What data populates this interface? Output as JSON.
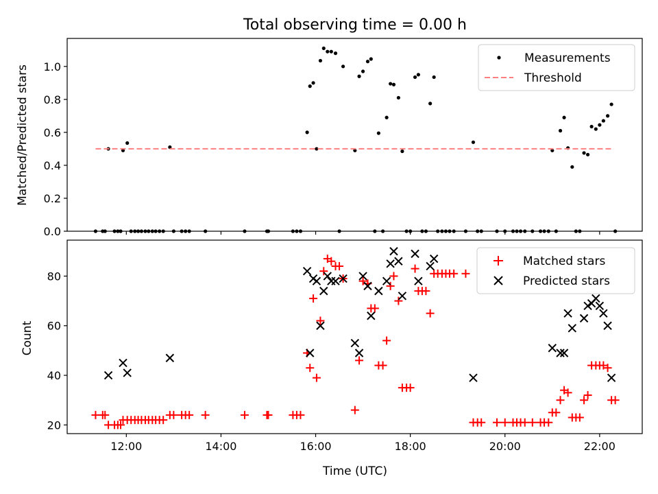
{
  "figure": {
    "title": "Total observing time = 0.00 h",
    "xlabel": "Time (UTC)",
    "xtick_labels": [
      "12:00",
      "14:00",
      "16:00",
      "18:00",
      "20:00",
      "22:00"
    ]
  },
  "colors": {
    "measurement": "#000000",
    "threshold": "#ff7f7f",
    "matched": "#ff0000",
    "predicted": "#000000"
  },
  "chart_data": [
    {
      "type": "scatter",
      "title": "Total observing time = 0.00 h",
      "xlabel": "",
      "ylabel": "Matched/Predicted stars",
      "x_unit": "hours UTC",
      "xlim": [
        10.75,
        22.9
      ],
      "ylim": [
        0,
        1.17
      ],
      "xticks": [
        12,
        14,
        16,
        18,
        20,
        22
      ],
      "yticks": [
        0.0,
        0.2,
        0.4,
        0.6,
        0.8,
        1.0
      ],
      "ytick_labels": [
        "0.0",
        "0.2",
        "0.4",
        "0.6",
        "0.8",
        "1.0"
      ],
      "grid": false,
      "legend": "top-right",
      "series": [
        {
          "name": "Measurements",
          "marker": "dot",
          "points": [
            [
              11.35,
              0
            ],
            [
              11.5,
              0
            ],
            [
              11.55,
              0
            ],
            [
              11.62,
              0.5
            ],
            [
              11.75,
              0
            ],
            [
              11.82,
              0
            ],
            [
              11.88,
              0
            ],
            [
              11.93,
              0.49
            ],
            [
              12.02,
              0.535
            ],
            [
              12.1,
              0
            ],
            [
              12.18,
              0
            ],
            [
              12.25,
              0
            ],
            [
              12.32,
              0
            ],
            [
              12.4,
              0
            ],
            [
              12.47,
              0
            ],
            [
              12.55,
              0
            ],
            [
              12.62,
              0
            ],
            [
              12.7,
              0
            ],
            [
              12.78,
              0
            ],
            [
              12.92,
              0.51
            ],
            [
              13.0,
              0
            ],
            [
              13.17,
              0
            ],
            [
              13.25,
              0
            ],
            [
              13.33,
              0
            ],
            [
              13.67,
              0
            ],
            [
              14.5,
              0
            ],
            [
              14.97,
              0
            ],
            [
              15.0,
              0
            ],
            [
              15.52,
              0
            ],
            [
              15.6,
              0
            ],
            [
              15.68,
              0
            ],
            [
              15.82,
              0.6
            ],
            [
              15.88,
              0.88
            ],
            [
              15.95,
              0.9
            ],
            [
              16.02,
              0.5
            ],
            [
              16.1,
              1.035
            ],
            [
              16.17,
              1.11
            ],
            [
              16.25,
              1.09
            ],
            [
              16.33,
              1.09
            ],
            [
              16.42,
              1.08
            ],
            [
              16.5,
              0
            ],
            [
              16.58,
              1.0
            ],
            [
              16.83,
              0.49
            ],
            [
              16.92,
              0.94
            ],
            [
              17.0,
              0.97
            ],
            [
              17.1,
              1.03
            ],
            [
              17.17,
              1.045
            ],
            [
              17.25,
              0
            ],
            [
              17.33,
              0.595
            ],
            [
              17.42,
              0
            ],
            [
              17.5,
              0.69
            ],
            [
              17.58,
              0.895
            ],
            [
              17.65,
              0.89
            ],
            [
              17.75,
              0.81
            ],
            [
              17.83,
              0.485
            ],
            [
              17.92,
              0
            ],
            [
              18.0,
              0
            ],
            [
              18.1,
              0.935
            ],
            [
              18.17,
              0.95
            ],
            [
              18.25,
              0
            ],
            [
              18.33,
              0
            ],
            [
              18.42,
              0.775
            ],
            [
              18.5,
              0.935
            ],
            [
              18.58,
              0
            ],
            [
              18.67,
              0
            ],
            [
              18.75,
              0
            ],
            [
              18.83,
              0
            ],
            [
              18.92,
              0
            ],
            [
              19.17,
              0
            ],
            [
              19.33,
              0.54
            ],
            [
              19.42,
              0
            ],
            [
              19.5,
              0
            ],
            [
              19.83,
              0
            ],
            [
              20.0,
              0
            ],
            [
              20.17,
              0
            ],
            [
              20.25,
              0
            ],
            [
              20.33,
              0
            ],
            [
              20.42,
              0
            ],
            [
              20.58,
              0
            ],
            [
              20.75,
              0
            ],
            [
              20.83,
              0
            ],
            [
              20.92,
              0
            ],
            [
              21.0,
              0.49
            ],
            [
              21.08,
              0
            ],
            [
              21.17,
              0.61
            ],
            [
              21.25,
              0.69
            ],
            [
              21.33,
              0.505
            ],
            [
              21.42,
              0.39
            ],
            [
              21.5,
              0
            ],
            [
              21.58,
              0
            ],
            [
              21.67,
              0.475
            ],
            [
              21.75,
              0.465
            ],
            [
              21.83,
              0.635
            ],
            [
              21.92,
              0.62
            ],
            [
              22.0,
              0.645
            ],
            [
              22.08,
              0.67
            ],
            [
              22.17,
              0.7
            ],
            [
              22.25,
              0.77
            ],
            [
              22.33,
              0
            ]
          ]
        },
        {
          "name": "Threshold",
          "marker": "dashed-line",
          "points": [
            [
              11.35,
              0.5
            ],
            [
              22.3,
              0.5
            ]
          ]
        }
      ]
    },
    {
      "type": "scatter",
      "title": "",
      "xlabel": "Time (UTC)",
      "ylabel": "Count",
      "x_unit": "hours UTC",
      "xlim": [
        10.75,
        22.9
      ],
      "ylim": [
        16.5,
        94.5
      ],
      "xticks": [
        12,
        14,
        16,
        18,
        20,
        22
      ],
      "xtick_labels": [
        "12:00",
        "14:00",
        "16:00",
        "18:00",
        "20:00",
        "22:00"
      ],
      "yticks": [
        20,
        40,
        60,
        80
      ],
      "ytick_labels": [
        "20",
        "40",
        "60",
        "80"
      ],
      "grid": false,
      "legend": "top-right",
      "series": [
        {
          "name": "Matched stars",
          "marker": "plus",
          "points": [
            [
              11.35,
              24
            ],
            [
              11.5,
              24
            ],
            [
              11.55,
              24
            ],
            [
              11.62,
              20
            ],
            [
              11.75,
              20
            ],
            [
              11.82,
              20
            ],
            [
              11.88,
              20
            ],
            [
              11.93,
              22
            ],
            [
              12.02,
              22
            ],
            [
              12.1,
              22
            ],
            [
              12.18,
              22
            ],
            [
              12.25,
              22
            ],
            [
              12.32,
              22
            ],
            [
              12.4,
              22
            ],
            [
              12.47,
              22
            ],
            [
              12.55,
              22
            ],
            [
              12.62,
              22
            ],
            [
              12.7,
              22
            ],
            [
              12.78,
              22
            ],
            [
              12.92,
              24
            ],
            [
              13.0,
              24
            ],
            [
              13.17,
              24
            ],
            [
              13.25,
              24
            ],
            [
              13.33,
              24
            ],
            [
              13.67,
              24
            ],
            [
              14.5,
              24
            ],
            [
              14.97,
              24
            ],
            [
              15.0,
              24
            ],
            [
              15.52,
              24
            ],
            [
              15.6,
              24
            ],
            [
              15.68,
              24
            ],
            [
              15.82,
              49
            ],
            [
              15.88,
              43
            ],
            [
              15.95,
              71
            ],
            [
              16.02,
              39
            ],
            [
              16.1,
              62
            ],
            [
              16.17,
              82
            ],
            [
              16.25,
              87
            ],
            [
              16.33,
              86
            ],
            [
              16.42,
              84
            ],
            [
              16.5,
              84
            ],
            [
              16.58,
              79
            ],
            [
              16.83,
              26
            ],
            [
              16.92,
              46
            ],
            [
              17.0,
              78
            ],
            [
              17.1,
              77
            ],
            [
              17.17,
              67
            ],
            [
              17.25,
              67
            ],
            [
              17.33,
              44
            ],
            [
              17.42,
              44
            ],
            [
              17.5,
              54
            ],
            [
              17.58,
              76
            ],
            [
              17.65,
              80
            ],
            [
              17.75,
              70
            ],
            [
              17.83,
              35
            ],
            [
              17.92,
              35
            ],
            [
              18.0,
              35
            ],
            [
              18.1,
              83
            ],
            [
              18.17,
              74
            ],
            [
              18.25,
              74
            ],
            [
              18.33,
              74
            ],
            [
              18.42,
              65
            ],
            [
              18.5,
              81
            ],
            [
              18.58,
              81
            ],
            [
              18.67,
              81
            ],
            [
              18.75,
              81
            ],
            [
              18.83,
              81
            ],
            [
              18.92,
              81
            ],
            [
              19.17,
              81
            ],
            [
              19.33,
              21
            ],
            [
              19.42,
              21
            ],
            [
              19.5,
              21
            ],
            [
              19.83,
              21
            ],
            [
              20.0,
              21
            ],
            [
              20.17,
              21
            ],
            [
              20.25,
              21
            ],
            [
              20.33,
              21
            ],
            [
              20.42,
              21
            ],
            [
              20.58,
              21
            ],
            [
              20.75,
              21
            ],
            [
              20.83,
              21
            ],
            [
              20.92,
              21
            ],
            [
              21.0,
              25
            ],
            [
              21.08,
              25
            ],
            [
              21.17,
              30
            ],
            [
              21.25,
              34
            ],
            [
              21.33,
              33
            ],
            [
              21.42,
              23
            ],
            [
              21.5,
              23
            ],
            [
              21.58,
              23
            ],
            [
              21.67,
              30
            ],
            [
              21.75,
              32
            ],
            [
              21.83,
              44
            ],
            [
              21.92,
              44
            ],
            [
              22.0,
              44
            ],
            [
              22.08,
              44
            ],
            [
              22.17,
              43
            ],
            [
              22.25,
              30
            ],
            [
              22.33,
              30
            ]
          ]
        },
        {
          "name": "Predicted stars",
          "marker": "x",
          "points": [
            [
              11.62,
              40
            ],
            [
              11.93,
              45
            ],
            [
              12.02,
              41
            ],
            [
              12.92,
              47
            ],
            [
              15.82,
              82
            ],
            [
              15.88,
              49
            ],
            [
              15.95,
              79
            ],
            [
              16.02,
              78
            ],
            [
              16.1,
              60
            ],
            [
              16.17,
              74
            ],
            [
              16.25,
              80
            ],
            [
              16.33,
              78
            ],
            [
              16.42,
              78
            ],
            [
              16.58,
              79
            ],
            [
              16.83,
              53
            ],
            [
              16.92,
              49
            ],
            [
              17.0,
              80
            ],
            [
              17.1,
              76
            ],
            [
              17.17,
              64
            ],
            [
              17.33,
              74
            ],
            [
              17.5,
              78
            ],
            [
              17.58,
              85
            ],
            [
              17.65,
              90
            ],
            [
              17.75,
              86
            ],
            [
              17.83,
              72
            ],
            [
              18.1,
              89
            ],
            [
              18.17,
              78
            ],
            [
              18.42,
              84
            ],
            [
              18.5,
              87
            ],
            [
              19.33,
              39
            ],
            [
              21.0,
              51
            ],
            [
              21.17,
              49
            ],
            [
              21.25,
              49
            ],
            [
              21.33,
              65
            ],
            [
              21.42,
              59
            ],
            [
              21.67,
              63
            ],
            [
              21.75,
              68
            ],
            [
              21.83,
              69
            ],
            [
              21.92,
              71
            ],
            [
              22.0,
              68
            ],
            [
              22.08,
              65
            ],
            [
              22.17,
              60
            ],
            [
              22.25,
              39
            ]
          ]
        }
      ]
    }
  ]
}
